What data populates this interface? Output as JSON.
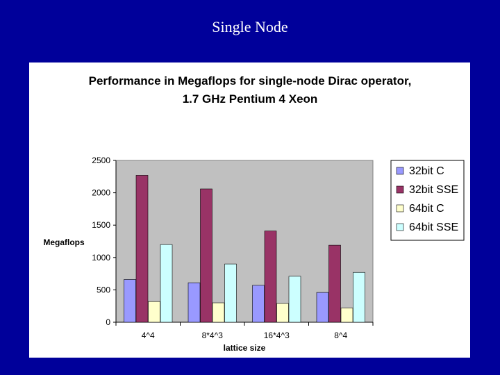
{
  "slide": {
    "title": "Single Node"
  },
  "colors": {
    "background": "#00009a",
    "plot_area": "#c0c0c0",
    "series": [
      "#9999ff",
      "#993366",
      "#ffffcc",
      "#ccffff"
    ]
  },
  "chart_data": {
    "type": "bar",
    "title_lines": [
      "Performance in Megaflops for single-node Dirac operator,",
      "1.7 GHz Pentium 4 Xeon"
    ],
    "xlabel": "lattice size",
    "ylabel": "Megaflops",
    "ylim": [
      0,
      2500
    ],
    "yticks": [
      0,
      500,
      1000,
      1500,
      2000,
      2500
    ],
    "categories": [
      "4^4",
      "8*4^3",
      "16*4^3",
      "8^4"
    ],
    "series": [
      {
        "name": "32bit C",
        "values": [
          660,
          610,
          570,
          460
        ]
      },
      {
        "name": "32bit SSE",
        "values": [
          2270,
          2060,
          1410,
          1190
        ]
      },
      {
        "name": "64bit C",
        "values": [
          320,
          300,
          290,
          220
        ]
      },
      {
        "name": "64bit SSE",
        "values": [
          1200,
          900,
          710,
          770
        ]
      }
    ],
    "grid": false,
    "legend_position": "right"
  }
}
